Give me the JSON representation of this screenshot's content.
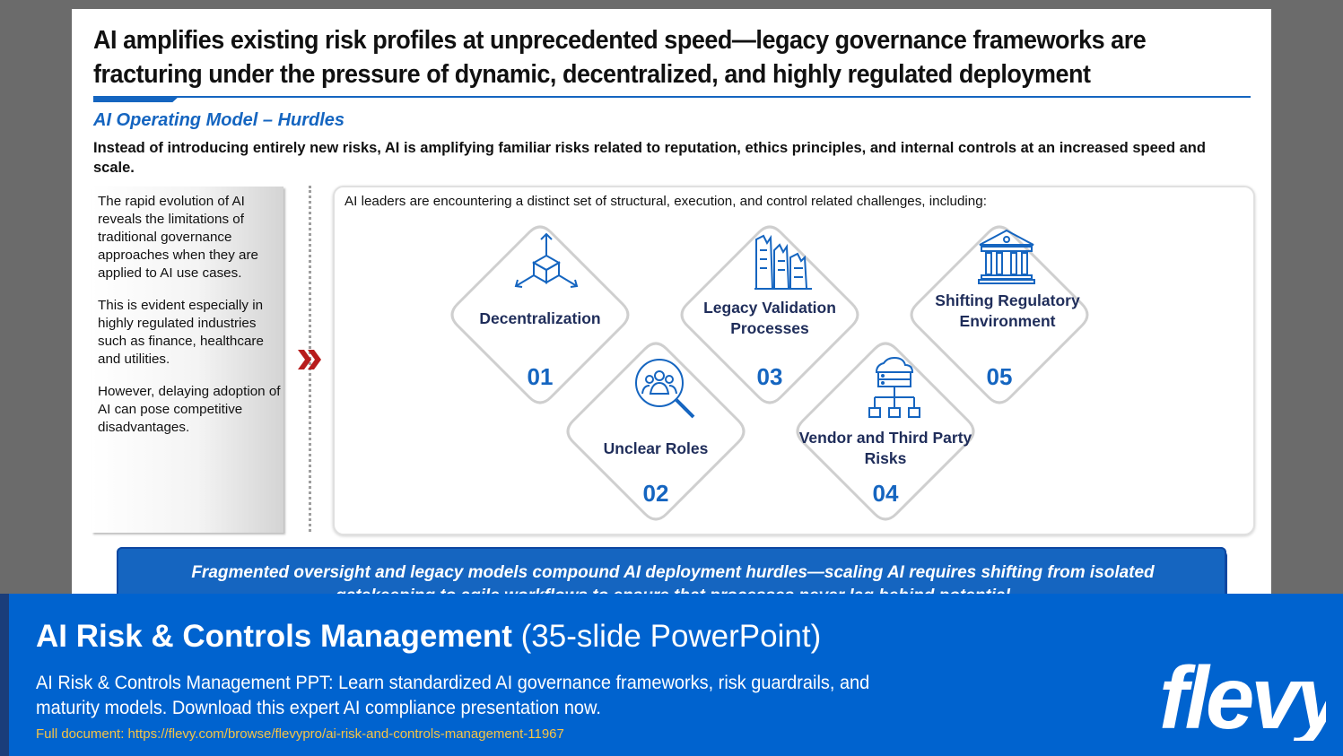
{
  "slide": {
    "title_line1": "AI amplifies existing risk profiles at unprecedented speed—legacy governance frameworks are",
    "title_line2": "fracturing under the pressure of dynamic, decentralized, and highly regulated deployment",
    "subtitle": "AI Operating Model – Hurdles",
    "lead": "Instead of introducing entirely new risks, AI is amplifying familiar risks related to reputation, ethics principles, and internal controls at an increased speed and scale.",
    "side_paragraphs": [
      "The rapid evolution of AI reveals the limitations of traditional governance approaches when they are applied to AI use cases.",
      "This is evident especially in highly regulated industries such as finance, healthcare and utilities.",
      "However, delaying adoption of AI can pose competitive disadvantages."
    ],
    "panel_intro": "AI leaders are encountering a distinct set of structural, execution, and control related challenges, including:",
    "hurdles": [
      {
        "label": "Decentralization",
        "number": "01",
        "icon": "cube-arrows-icon"
      },
      {
        "label": "Unclear Roles",
        "number": "02",
        "icon": "people-search-icon"
      },
      {
        "label": "Legacy Validation Processes",
        "number": "03",
        "icon": "crumbling-buildings-icon"
      },
      {
        "label": "Vendor and Third Party Risks",
        "number": "04",
        "icon": "cloud-network-icon"
      },
      {
        "label": "Shifting Regulatory Environment",
        "number": "05",
        "icon": "government-building-icon"
      }
    ],
    "banner_text": "Fragmented oversight and legacy models compound AI deployment hurdles—scaling AI requires shifting from isolated gatekeeping to agile workflows to ensure that processes never lag behind potential"
  },
  "footer": {
    "title_bold": "AI Risk & Controls Management",
    "title_rest": " (35-slide PowerPoint)",
    "description": "AI Risk & Controls Management PPT: Learn standardized AI governance frameworks, risk guardrails, and maturity models. Download this expert AI compliance presentation now.",
    "link": "Full document: https://flevy.com/browse/flevypro/ai-risk-and-controls-management-11967",
    "logo_text": "flevy"
  },
  "colors": {
    "accent": "#1565c0",
    "footer_bg": "#0063cf",
    "link": "#f5c445",
    "label": "#1f2d5a"
  }
}
